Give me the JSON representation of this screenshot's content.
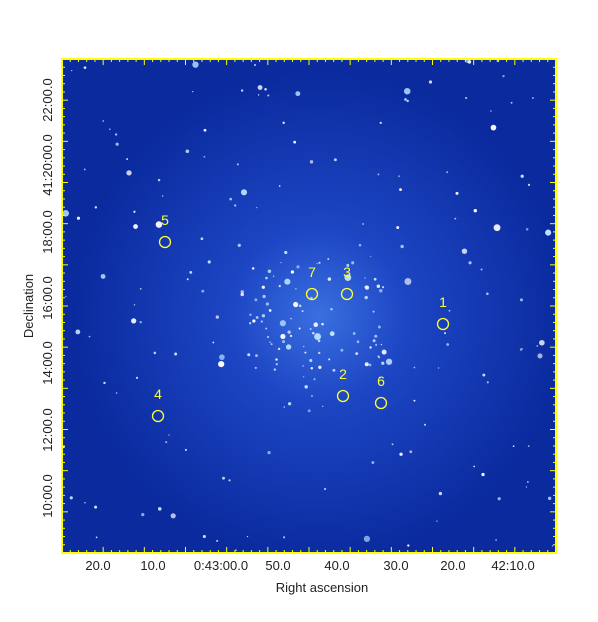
{
  "x_axis": {
    "title": "Right ascension",
    "ticks": [
      "20.0",
      "10.0",
      "0:43:00.0",
      "50.0",
      "40.0",
      "30.0",
      "20.0",
      "42:10.0"
    ]
  },
  "y_axis": {
    "title": "Declination",
    "ticks": [
      "10:00.0",
      "12:00.0",
      "14:00.0",
      "16:00.0",
      "18:00.0",
      "41:20:00.0",
      "22:00.0"
    ]
  },
  "markers": [
    {
      "label": "1"
    },
    {
      "label": "2"
    },
    {
      "label": "3"
    },
    {
      "label": "4"
    },
    {
      "label": "5"
    },
    {
      "label": "6"
    },
    {
      "label": "7"
    }
  ]
}
